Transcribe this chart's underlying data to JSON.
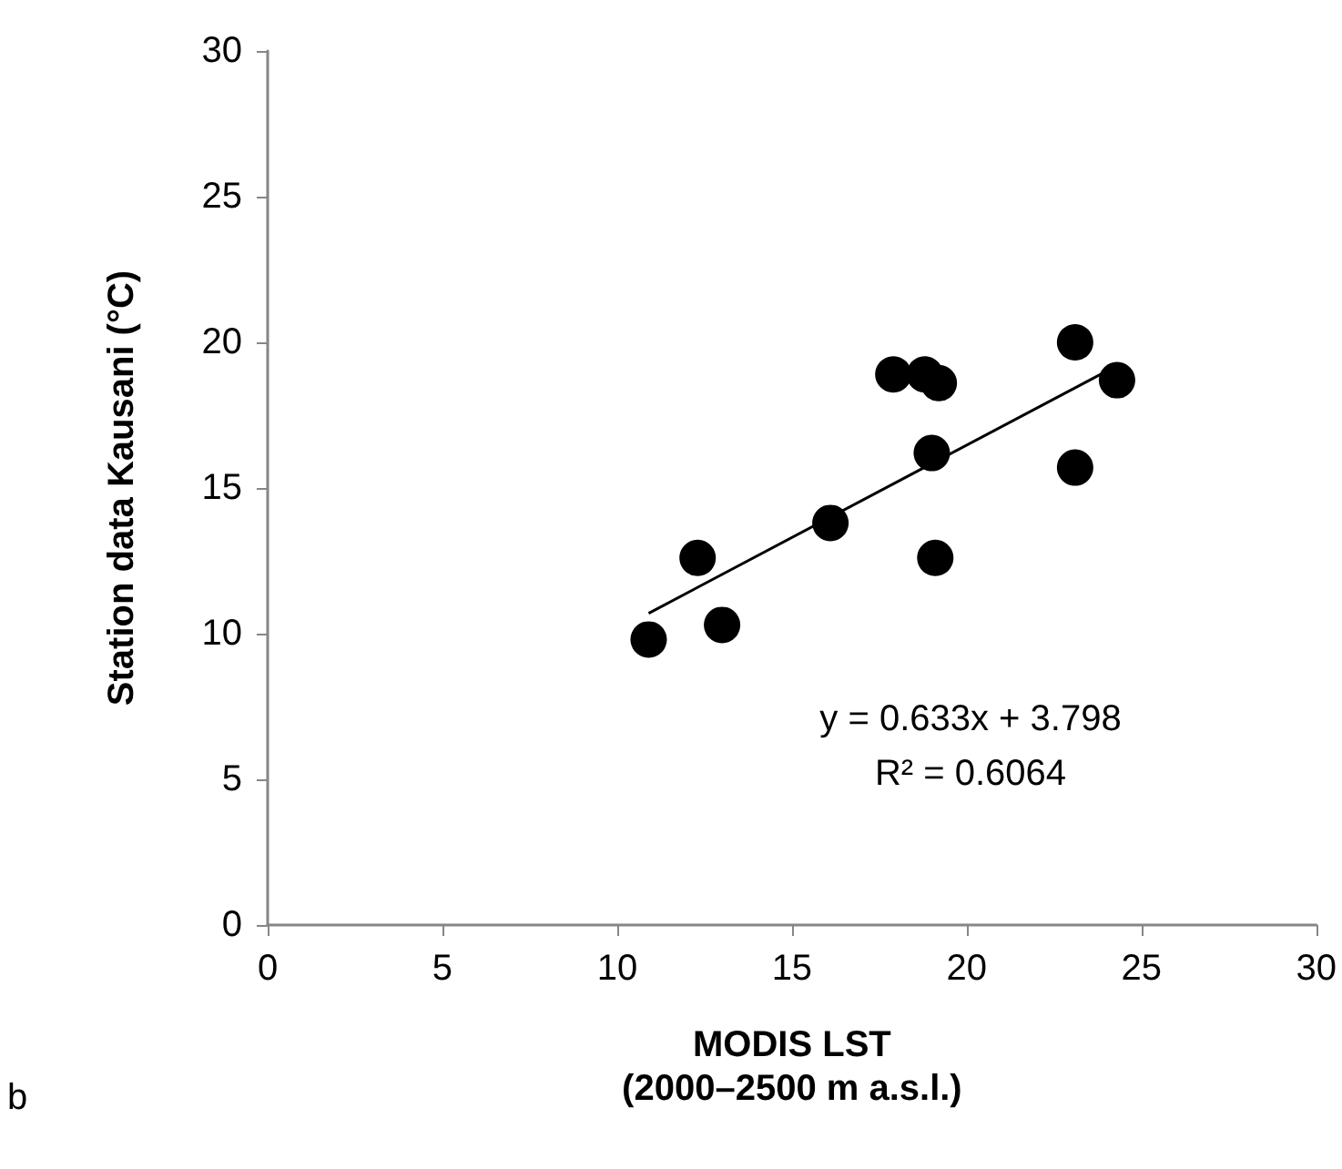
{
  "chart_data": {
    "type": "scatter",
    "xlabel": "MODIS LST\n(2000–2500 m a.s.l.)",
    "ylabel": "Station data Kausani (°C)",
    "xlim": [
      0,
      30
    ],
    "xticks": [
      0,
      5,
      10,
      15,
      20,
      25,
      30
    ],
    "ylim": [
      0,
      30
    ],
    "yticks": [
      0,
      5,
      10,
      15,
      20,
      25,
      30
    ],
    "grid": false,
    "marker": "circle",
    "series": [
      {
        "color": "#000000",
        "x": [
          10.9,
          13.0,
          12.3,
          16.1,
          19.0,
          19.1,
          17.9,
          18.8,
          19.2,
          23.1,
          24.3,
          23.1
        ],
        "values": [
          9.8,
          10.3,
          12.6,
          13.8,
          16.2,
          12.6,
          18.9,
          18.9,
          18.6,
          20.0,
          18.7,
          15.7
        ]
      },
      {
        "type": "line",
        "color": "#000000",
        "marker": "none",
        "line_style": "solid",
        "x": [
          10.9,
          24.3
        ],
        "values": [
          10.7,
          19.2
        ]
      }
    ],
    "annotations": [
      "y = 0.633x + 3.798\nR² = 0.6064",
      "b"
    ]
  }
}
